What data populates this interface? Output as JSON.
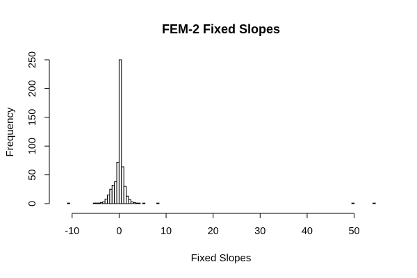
{
  "chart_data": {
    "type": "bar",
    "title": "FEM-2 Fixed Slopes",
    "xlabel": "Fixed Slopes",
    "ylabel": "Frequency",
    "bin_width": 0.5,
    "x_ticks": [
      -10,
      0,
      10,
      20,
      30,
      40,
      50
    ],
    "x_tick_labels": [
      "-10",
      "0",
      "10",
      "20",
      "30",
      "40",
      "50"
    ],
    "y_ticks": [
      0,
      50,
      100,
      150,
      200,
      250
    ],
    "y_tick_labels": [
      "0",
      "50",
      "100",
      "150",
      "200",
      "250"
    ],
    "xlim": [
      -11,
      54.5
    ],
    "ylim": [
      0,
      250
    ],
    "grid": false,
    "bins": [
      {
        "x0": -11.0,
        "x1": -10.5,
        "count": 1
      },
      {
        "x0": -5.5,
        "x1": -5.0,
        "count": 1
      },
      {
        "x0": -5.0,
        "x1": -4.5,
        "count": 1
      },
      {
        "x0": -4.5,
        "x1": -4.0,
        "count": 1
      },
      {
        "x0": -4.0,
        "x1": -3.5,
        "count": 2
      },
      {
        "x0": -3.5,
        "x1": -3.0,
        "count": 3
      },
      {
        "x0": -3.0,
        "x1": -2.5,
        "count": 8
      },
      {
        "x0": -2.5,
        "x1": -2.0,
        "count": 15
      },
      {
        "x0": -2.0,
        "x1": -1.5,
        "count": 25
      },
      {
        "x0": -1.5,
        "x1": -1.0,
        "count": 32
      },
      {
        "x0": -1.0,
        "x1": -0.5,
        "count": 38
      },
      {
        "x0": -0.5,
        "x1": 0.0,
        "count": 72
      },
      {
        "x0": 0.0,
        "x1": 0.5,
        "count": 250
      },
      {
        "x0": 0.5,
        "x1": 1.0,
        "count": 64
      },
      {
        "x0": 1.0,
        "x1": 1.5,
        "count": 30
      },
      {
        "x0": 1.5,
        "x1": 2.0,
        "count": 13
      },
      {
        "x0": 2.0,
        "x1": 2.5,
        "count": 7
      },
      {
        "x0": 2.5,
        "x1": 3.0,
        "count": 3
      },
      {
        "x0": 3.0,
        "x1": 3.5,
        "count": 2
      },
      {
        "x0": 3.5,
        "x1": 4.0,
        "count": 1
      },
      {
        "x0": 4.0,
        "x1": 4.5,
        "count": 1
      },
      {
        "x0": 5.0,
        "x1": 5.5,
        "count": 1
      },
      {
        "x0": 8.0,
        "x1": 8.5,
        "count": 1
      },
      {
        "x0": 49.5,
        "x1": 50.0,
        "count": 1
      },
      {
        "x0": 54.0,
        "x1": 54.5,
        "count": 1
      }
    ]
  }
}
